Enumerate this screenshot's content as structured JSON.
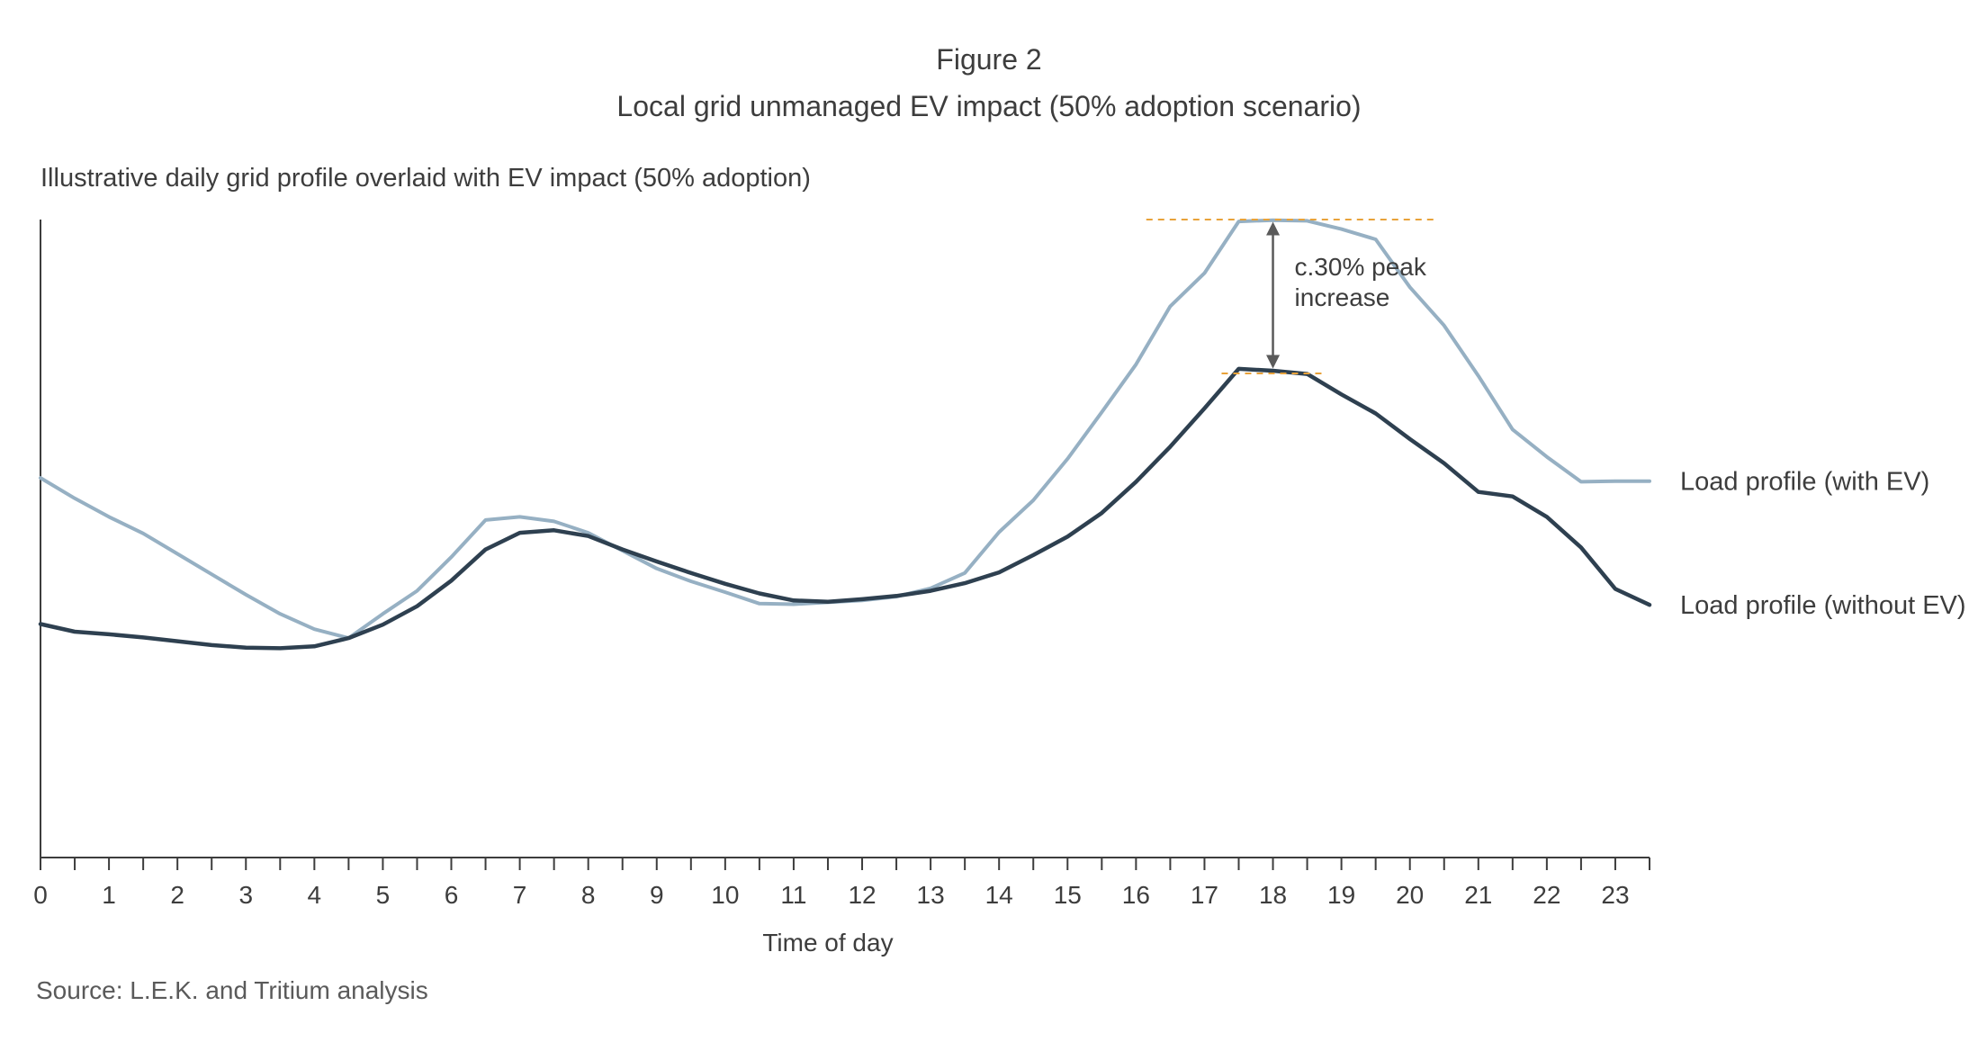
{
  "figure": {
    "number": "Figure 2",
    "title": "Local grid unmanaged EV impact (50% adoption scenario)",
    "subtitle": "Illustrative daily grid profile overlaid with EV impact (50% adoption)",
    "source": "Source: L.E.K. and Tritium analysis"
  },
  "chart_data": {
    "type": "line",
    "title": "",
    "xlabel": "Time of day",
    "ylabel": "",
    "xlim": [
      0,
      23.5
    ],
    "ylim": [
      0,
      100
    ],
    "y_axis_ticks_shown": false,
    "grid": false,
    "legend": "labels at right end of each line",
    "x_ticks": [
      "0",
      "1",
      "2",
      "3",
      "4",
      "5",
      "6",
      "7",
      "8",
      "9",
      "10",
      "11",
      "12",
      "13",
      "14",
      "15",
      "16",
      "17",
      "18",
      "19",
      "20",
      "21",
      "22",
      "23"
    ],
    "x": [
      0,
      0.5,
      1,
      1.5,
      2,
      2.5,
      3,
      3.5,
      4,
      4.5,
      5,
      5.5,
      6,
      6.5,
      7,
      7.5,
      8,
      8.5,
      9,
      9.5,
      10,
      10.5,
      11,
      11.5,
      12,
      12.5,
      13,
      13.5,
      14,
      14.5,
      15,
      15.5,
      16,
      16.5,
      17,
      17.5,
      18,
      18.5,
      19,
      19.5,
      20,
      20.5,
      21,
      21.5,
      22,
      22.5,
      23,
      23.5
    ],
    "series": [
      {
        "name": "Load profile (with EV)",
        "color": "#96b0c3",
        "values": [
          59.5,
          56.3,
          53.4,
          50.8,
          47.6,
          44.4,
          41.2,
          38.2,
          35.8,
          34.4,
          38.2,
          41.8,
          47.1,
          52.9,
          53.4,
          52.7,
          50.9,
          48.1,
          45.3,
          43.3,
          41.6,
          39.8,
          39.7,
          40.0,
          40.3,
          40.9,
          42.2,
          44.6,
          51.0,
          56.0,
          62.5,
          69.8,
          77.3,
          86.4,
          91.6,
          99.7,
          99.9,
          99.8,
          98.5,
          96.9,
          89.4,
          83.4,
          75.5,
          67.1,
          62.8,
          58.9,
          59.0,
          59.0
        ]
      },
      {
        "name": "Load profile (without EV)",
        "color": "#2e4050",
        "values": [
          36.6,
          35.4,
          35.0,
          34.5,
          33.9,
          33.3,
          32.9,
          32.8,
          33.1,
          34.4,
          36.5,
          39.4,
          43.4,
          48.3,
          50.9,
          51.3,
          50.4,
          48.3,
          46.4,
          44.6,
          42.9,
          41.4,
          40.3,
          40.1,
          40.5,
          41.0,
          41.8,
          43.0,
          44.7,
          47.4,
          50.3,
          54.0,
          58.9,
          64.4,
          70.4,
          76.6,
          76.3,
          75.8,
          72.6,
          69.6,
          65.6,
          61.8,
          57.3,
          56.6,
          53.4,
          48.6,
          42.1,
          39.6
        ]
      }
    ],
    "annotations": [
      {
        "text_lines": [
          "c.30% peak",
          "increase"
        ],
        "from_y": 76.3,
        "to_y": 100
      }
    ]
  }
}
